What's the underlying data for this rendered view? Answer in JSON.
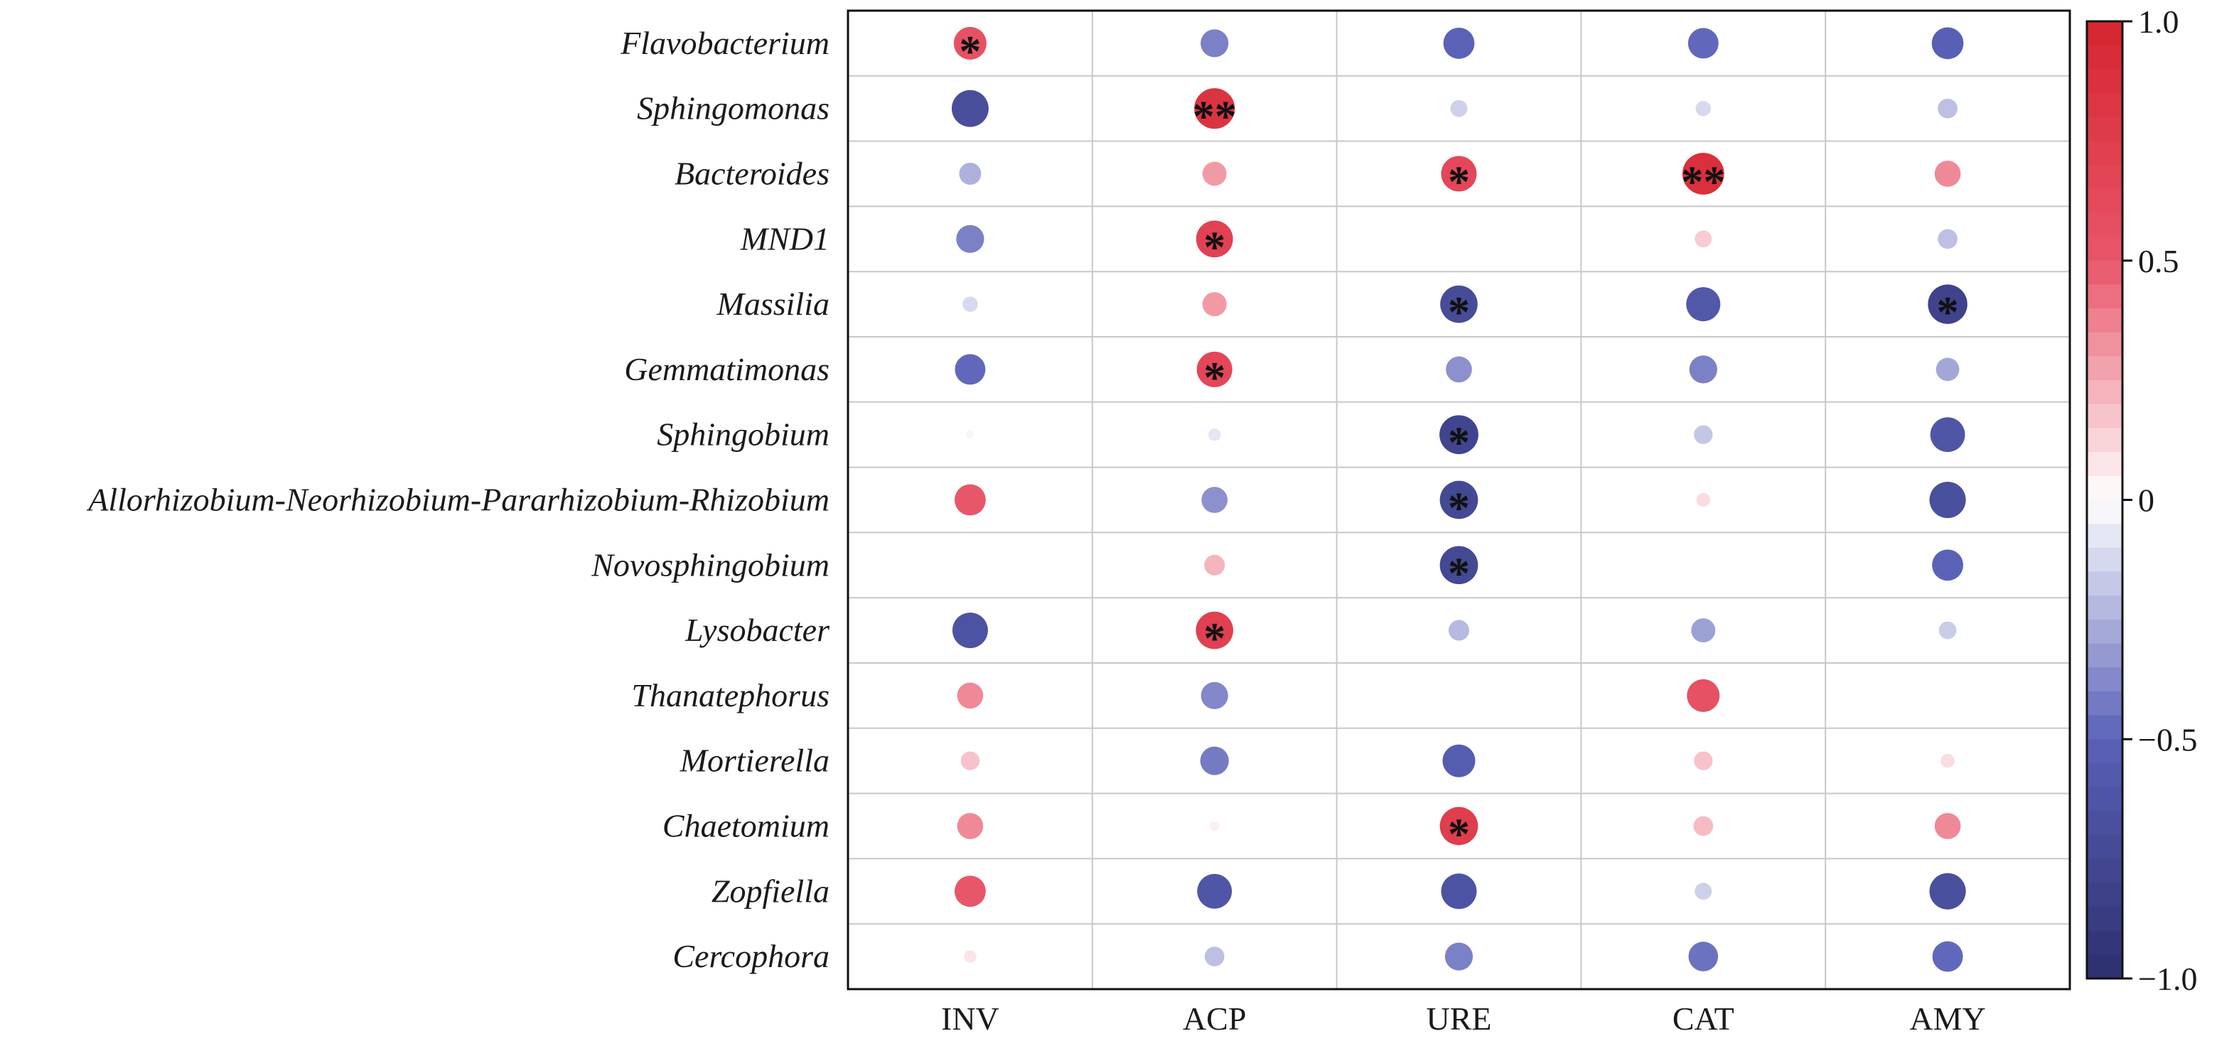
{
  "chart_data": {
    "type": "heatmap",
    "style": "bubble-correlation-matrix",
    "rows": [
      "Flavobacterium",
      "Sphingomonas",
      "Bacteroides",
      "MND1",
      "Massilia",
      "Gemmatimonas",
      "Sphingobium",
      "Allorhizobium-Neorhizobium-Pararhizobium-Rhizobium",
      "Novosphingobium",
      "Lysobacter",
      "Thanatephorus",
      "Mortierella",
      "Chaetomium",
      "Zopfiella",
      "Cercophora"
    ],
    "columns": [
      "INV",
      "ACP",
      "URE",
      "CAT",
      "AMY"
    ],
    "values": [
      [
        0.55,
        -0.4,
        -0.5,
        -0.48,
        -0.52
      ],
      [
        -0.7,
        0.85,
        -0.15,
        -0.12,
        -0.2
      ],
      [
        -0.25,
        0.3,
        0.65,
        0.9,
        0.35
      ],
      [
        -0.4,
        0.7,
        0.0,
        0.15,
        -0.2
      ],
      [
        -0.12,
        0.3,
        -0.72,
        -0.6,
        -0.8
      ],
      [
        -0.48,
        0.65,
        -0.35,
        -0.4,
        -0.28
      ],
      [
        -0.03,
        -0.08,
        -0.78,
        -0.18,
        -0.62
      ],
      [
        0.5,
        -0.35,
        -0.75,
        0.1,
        -0.68
      ],
      [
        0.0,
        0.22,
        -0.75,
        0.0,
        -0.5
      ],
      [
        -0.65,
        0.72,
        -0.22,
        -0.3,
        -0.16
      ],
      [
        0.35,
        -0.38,
        0.0,
        0.55,
        0.0
      ],
      [
        0.18,
        -0.42,
        -0.55,
        0.18,
        0.1
      ],
      [
        0.35,
        0.05,
        0.75,
        0.2,
        0.35
      ],
      [
        0.5,
        -0.62,
        -0.65,
        -0.15,
        -0.68
      ],
      [
        0.08,
        -0.2,
        -0.4,
        -0.45,
        -0.48
      ]
    ],
    "significance": [
      [
        "*",
        "",
        "",
        "",
        ""
      ],
      [
        "",
        "**",
        "",
        "",
        ""
      ],
      [
        "",
        "",
        "*",
        "**",
        ""
      ],
      [
        "",
        "*",
        "",
        "",
        ""
      ],
      [
        "",
        "",
        "*",
        "",
        "*"
      ],
      [
        "",
        "*",
        "",
        "",
        ""
      ],
      [
        "",
        "",
        "*",
        "",
        ""
      ],
      [
        "",
        "",
        "*",
        "",
        ""
      ],
      [
        "",
        "",
        "*",
        "",
        ""
      ],
      [
        "",
        "*",
        "",
        "",
        ""
      ],
      [
        "",
        "",
        "",
        "",
        ""
      ],
      [
        "",
        "",
        "",
        "",
        ""
      ],
      [
        "",
        "",
        "*",
        "",
        ""
      ],
      [
        "",
        "",
        "",
        "",
        ""
      ],
      [
        "",
        "",
        "",
        "",
        ""
      ]
    ],
    "colorbar": {
      "range": [
        -1.0,
        1.0
      ],
      "ticks": [
        "1.0",
        "0.5",
        "0",
        "−0.5",
        "−1.0"
      ],
      "tick_values": [
        1.0,
        0.5,
        0.0,
        -0.5,
        -1.0
      ],
      "levels": 40,
      "colors": {
        "negative": "#2c2f6e",
        "mid_negative": "#5a62b8",
        "zero": "#ffffff",
        "mid_positive": "#e8566a",
        "positive": "#d62530"
      }
    },
    "grid": true,
    "legend": "colorbar-right"
  }
}
